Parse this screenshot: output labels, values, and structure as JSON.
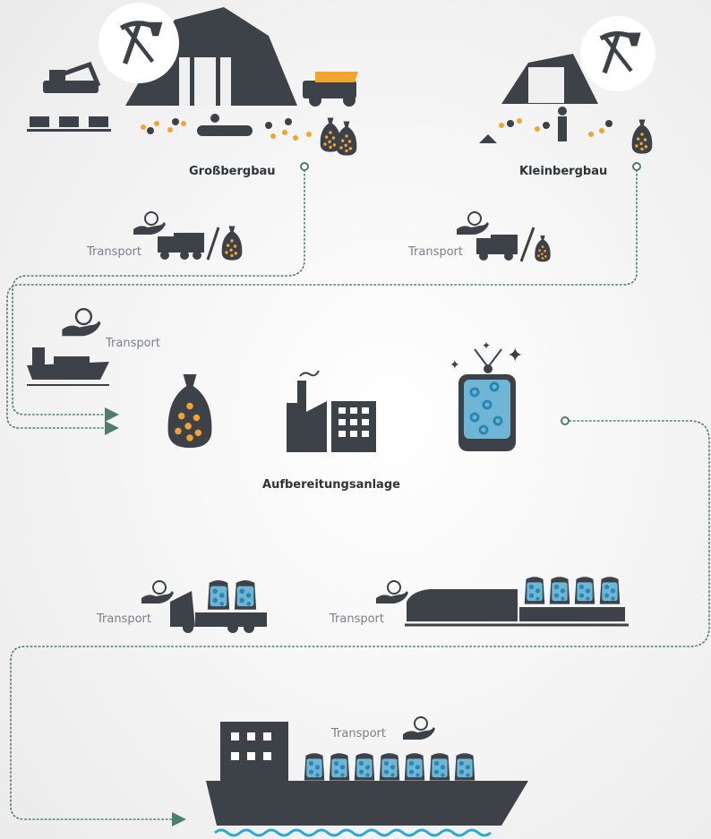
{
  "mining": [
    {
      "label": "Großbergbau"
    },
    {
      "label": "Kleinbergbau"
    }
  ],
  "processing": {
    "label": "Aufbereitungsanlage"
  },
  "transports": [
    {
      "label": "Transport"
    },
    {
      "label": "Transport"
    },
    {
      "label": "Transport"
    },
    {
      "label": "Transport"
    },
    {
      "label": "Transport"
    },
    {
      "label": "Transport"
    }
  ]
}
